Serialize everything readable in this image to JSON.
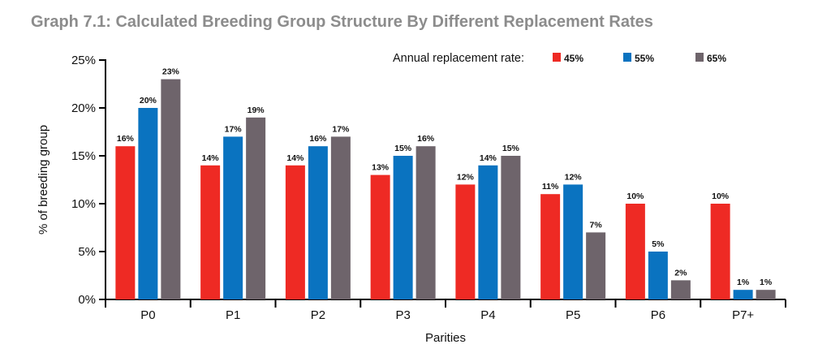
{
  "chart_data": {
    "type": "bar",
    "title": "Graph 7.1: Calculated Breeding Group Structure By Different Replacement Rates",
    "xlabel": "Parities",
    "ylabel": "% of breeding group",
    "ylim": [
      0,
      25
    ],
    "yticks": [
      "0%",
      "5%",
      "10%",
      "15%",
      "20%",
      "25%"
    ],
    "ytick_values": [
      0,
      5,
      10,
      15,
      20,
      25
    ],
    "categories": [
      "P0",
      "P1",
      "P2",
      "P3",
      "P4",
      "P5",
      "P6",
      "P7+"
    ],
    "legend_title": "Annual replacement rate:",
    "legend_position": "top-right",
    "grid": false,
    "series": [
      {
        "name": "45%",
        "color": "#ee2a24",
        "values": [
          16,
          14,
          14,
          13,
          12,
          11,
          10,
          10
        ],
        "labels": [
          "16%",
          "14%",
          "14%",
          "13%",
          "12%",
          "11%",
          "10%",
          "10%"
        ]
      },
      {
        "name": "55%",
        "color": "#0a73c0",
        "values": [
          20,
          17,
          16,
          15,
          14,
          12,
          5,
          1
        ],
        "labels": [
          "20%",
          "17%",
          "16%",
          "15%",
          "14%",
          "12%",
          "5%",
          "1%"
        ]
      },
      {
        "name": "65%",
        "color": "#6e646b",
        "values": [
          23,
          19,
          17,
          16,
          15,
          7,
          2,
          1
        ],
        "labels": [
          "23%",
          "19%",
          "17%",
          "16%",
          "15%",
          "7%",
          "2%",
          "1%"
        ]
      }
    ]
  }
}
